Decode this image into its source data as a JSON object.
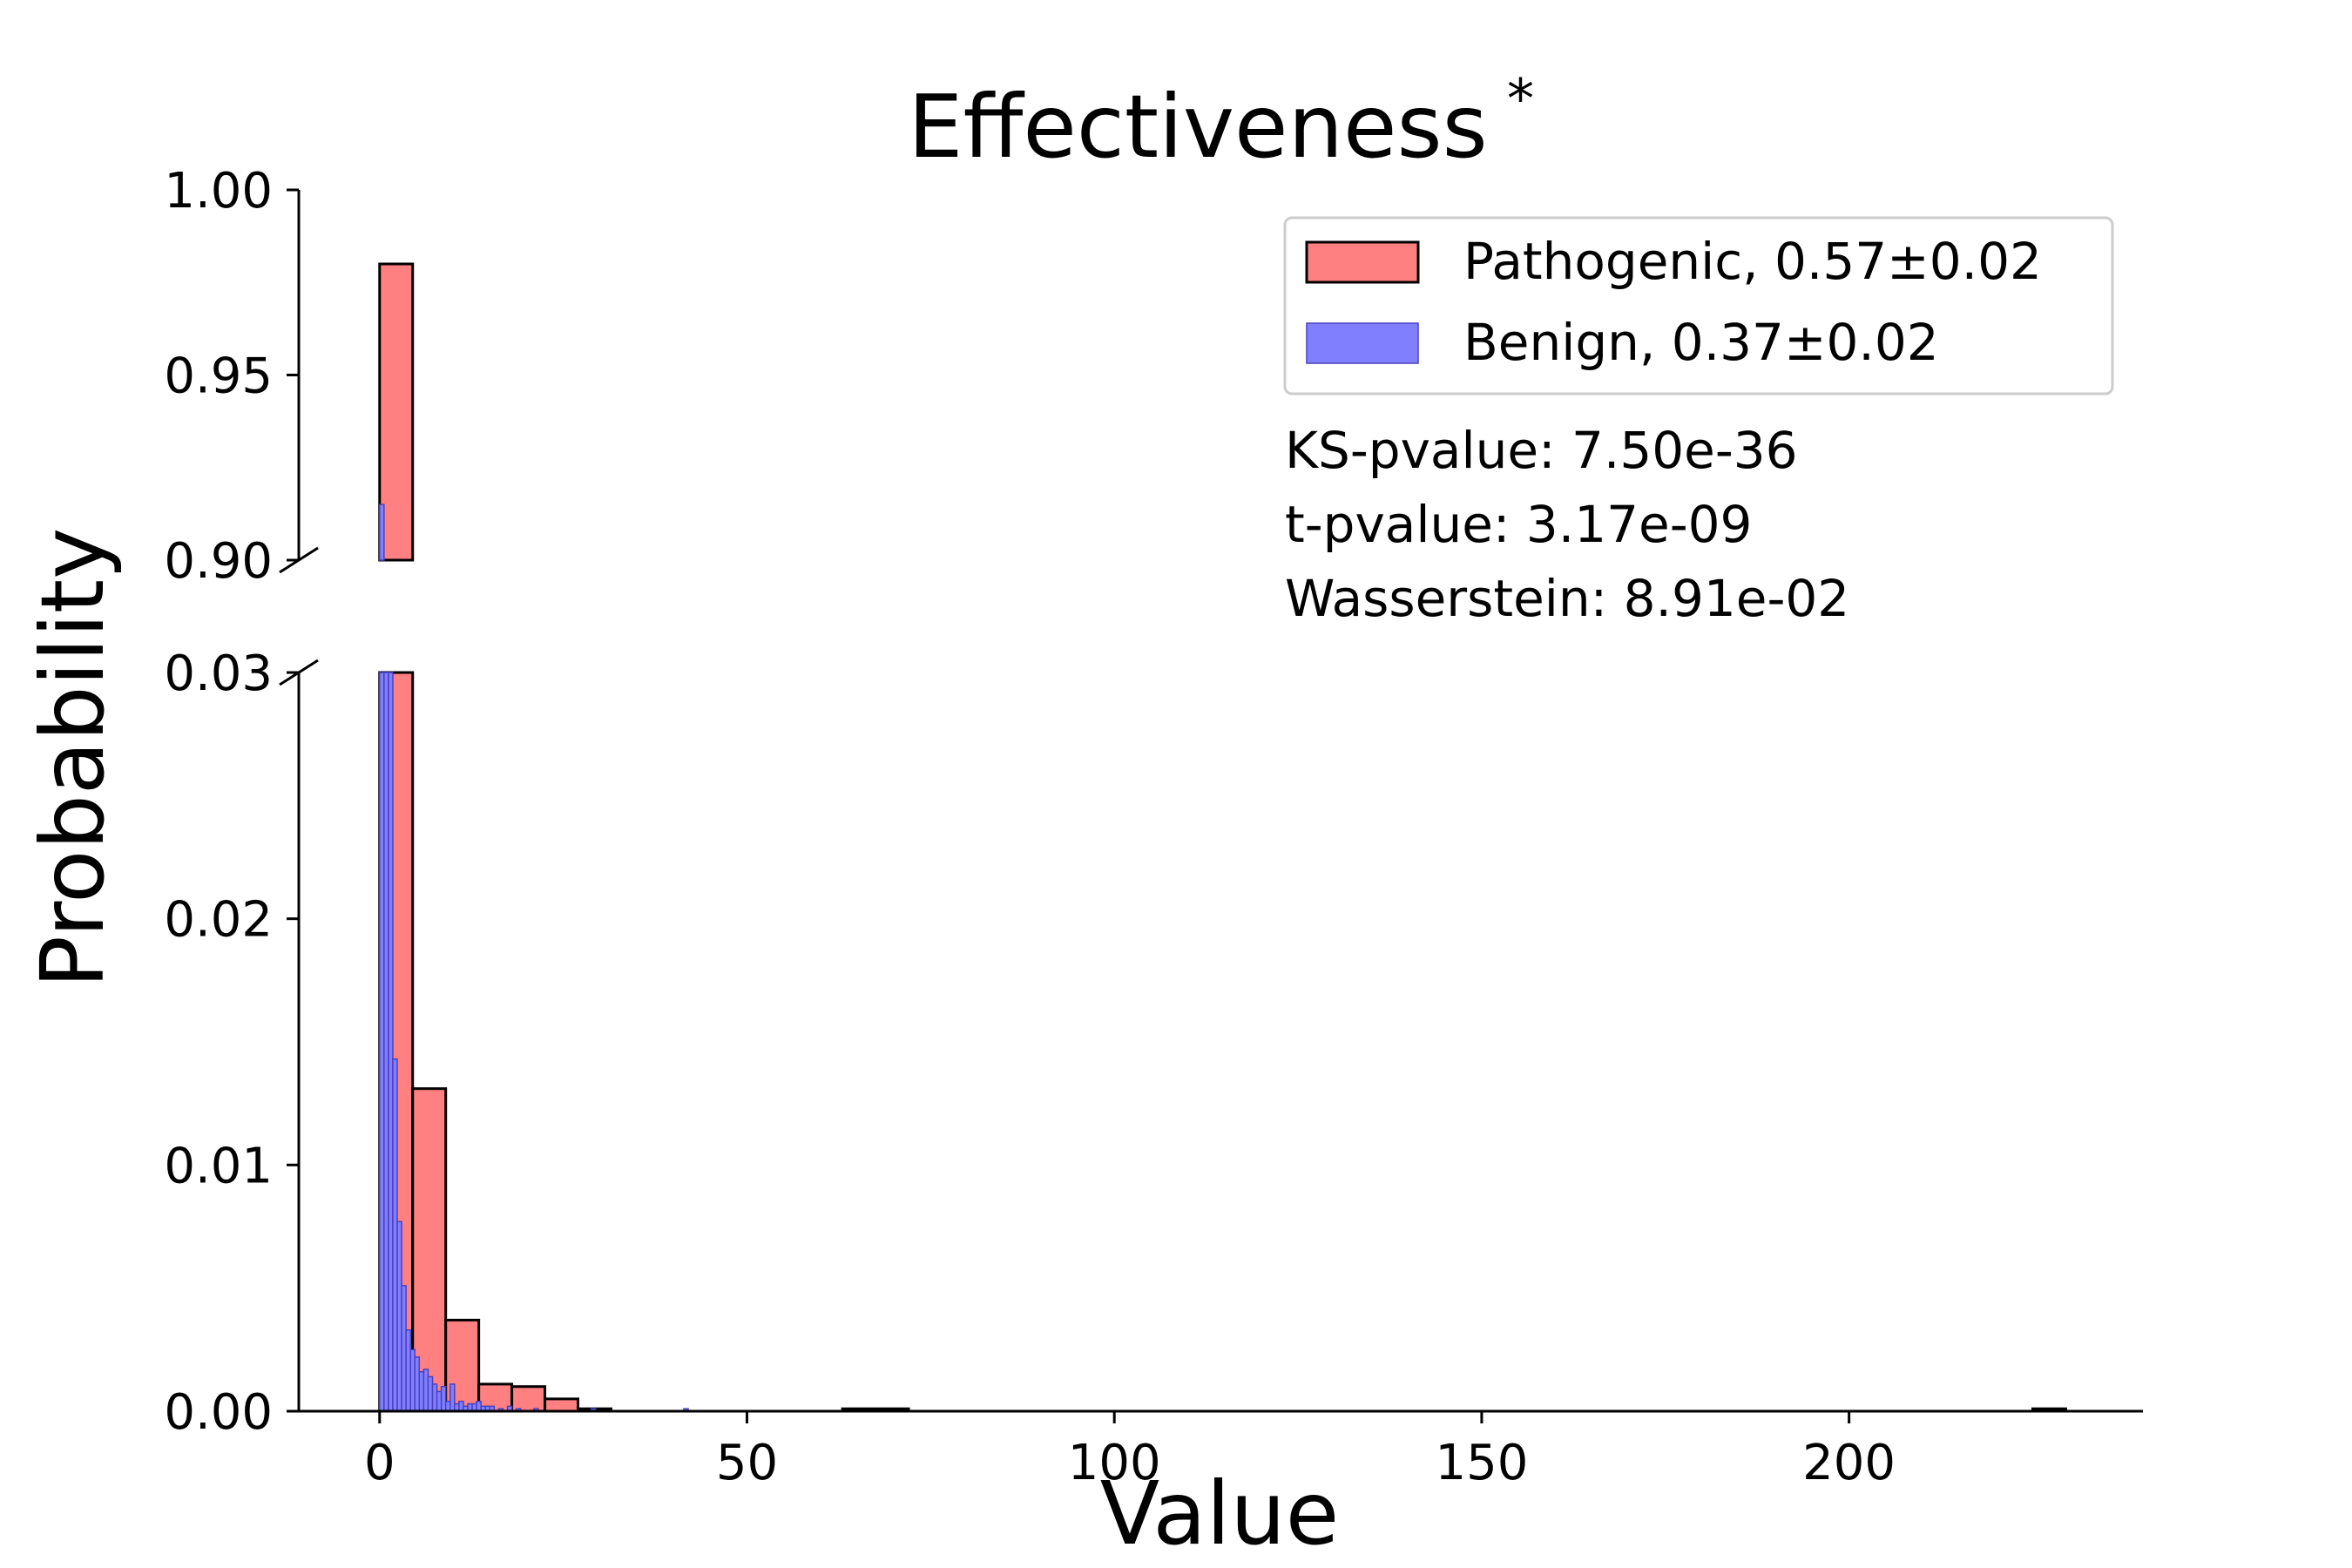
{
  "chart_data": {
    "type": "bar",
    "title": "Effectiveness",
    "title_superscript": "*",
    "xlabel": "Value",
    "ylabel": "Probability",
    "xlim": [
      -11,
      240
    ],
    "x_ticks": [
      0,
      50,
      100,
      150,
      200
    ],
    "y_ticks_upper": [
      "0.90",
      "0.95",
      "1.00"
    ],
    "y_ticks_lower": [
      "0.00",
      "0.01",
      "0.02",
      "0.03"
    ],
    "ylim_upper": [
      0.9,
      1.0
    ],
    "ylim_lower": [
      0.0,
      0.03
    ],
    "broken_axis": true,
    "grid": false,
    "legend_position": "top-right",
    "series": [
      {
        "name": "Pathogenic, 0.57±0.02",
        "color": "#ff8080",
        "edge_color": "#000000",
        "bins": [
          {
            "x0": 0,
            "x1": 4.5,
            "value": 0.98
          },
          {
            "x0": 4.5,
            "x1": 9.0,
            "value": 0.0131
          },
          {
            "x0": 9.0,
            "x1": 13.5,
            "value": 0.0037
          },
          {
            "x0": 13.5,
            "x1": 18.0,
            "value": 0.0011
          },
          {
            "x0": 18.0,
            "x1": 22.5,
            "value": 0.001
          },
          {
            "x0": 22.5,
            "x1": 27.0,
            "value": 0.0005
          },
          {
            "x0": 27.0,
            "x1": 31.5,
            "value": 0.0001
          },
          {
            "x0": 63.0,
            "x1": 72.0,
            "value": 0.0001
          },
          {
            "x0": 225.0,
            "x1": 229.5,
            "value": 0.0001
          }
        ]
      },
      {
        "name": "Benign, 0.37±0.02",
        "color": "#8080ff",
        "edge_color": "#4a40c0",
        "bins": [
          {
            "x0": 0.0,
            "x1": 0.6,
            "value": 0.915
          },
          {
            "x0": 0.6,
            "x1": 1.2,
            "value": 0.03
          },
          {
            "x0": 1.2,
            "x1": 1.8,
            "value": 0.03
          },
          {
            "x0": 1.8,
            "x1": 2.4,
            "value": 0.0143
          },
          {
            "x0": 2.4,
            "x1": 3.0,
            "value": 0.0077
          },
          {
            "x0": 3.0,
            "x1": 3.6,
            "value": 0.0051
          },
          {
            "x0": 3.6,
            "x1": 4.2,
            "value": 0.0033
          },
          {
            "x0": 4.2,
            "x1": 4.8,
            "value": 0.0025
          },
          {
            "x0": 4.8,
            "x1": 5.4,
            "value": 0.0022
          },
          {
            "x0": 5.4,
            "x1": 6.0,
            "value": 0.0016
          },
          {
            "x0": 6.0,
            "x1": 6.6,
            "value": 0.0017
          },
          {
            "x0": 6.6,
            "x1": 7.2,
            "value": 0.0014
          },
          {
            "x0": 7.2,
            "x1": 7.8,
            "value": 0.0011
          },
          {
            "x0": 7.8,
            "x1": 8.4,
            "value": 0.0008
          },
          {
            "x0": 8.4,
            "x1": 9.0,
            "value": 0.001
          },
          {
            "x0": 9.0,
            "x1": 9.6,
            "value": 0.0004
          },
          {
            "x0": 9.6,
            "x1": 10.2,
            "value": 0.0011
          },
          {
            "x0": 10.2,
            "x1": 10.8,
            "value": 0.0003
          },
          {
            "x0": 10.8,
            "x1": 11.4,
            "value": 0.0004
          },
          {
            "x0": 11.4,
            "x1": 12.0,
            "value": 0.0002
          },
          {
            "x0": 12.0,
            "x1": 12.6,
            "value": 0.0003
          },
          {
            "x0": 12.6,
            "x1": 13.2,
            "value": 0.0003
          },
          {
            "x0": 13.2,
            "x1": 13.8,
            "value": 0.0004
          },
          {
            "x0": 13.8,
            "x1": 14.4,
            "value": 0.0002
          },
          {
            "x0": 14.4,
            "x1": 15.0,
            "value": 0.0002
          },
          {
            "x0": 15.0,
            "x1": 15.6,
            "value": 0.0002
          },
          {
            "x0": 16.2,
            "x1": 16.8,
            "value": 0.0001
          },
          {
            "x0": 17.4,
            "x1": 18.0,
            "value": 0.0002
          },
          {
            "x0": 18.6,
            "x1": 19.2,
            "value": 0.0001
          },
          {
            "x0": 21.0,
            "x1": 21.6,
            "value": 0.0001
          },
          {
            "x0": 28.8,
            "x1": 29.4,
            "value": 0.0001
          },
          {
            "x0": 41.4,
            "x1": 42.0,
            "value": 0.0001
          }
        ]
      }
    ],
    "annotations": [
      "KS-pvalue: 7.50e-36",
      "t-pvalue: 3.17e-09",
      "Wasserstein: 8.91e-02"
    ]
  }
}
